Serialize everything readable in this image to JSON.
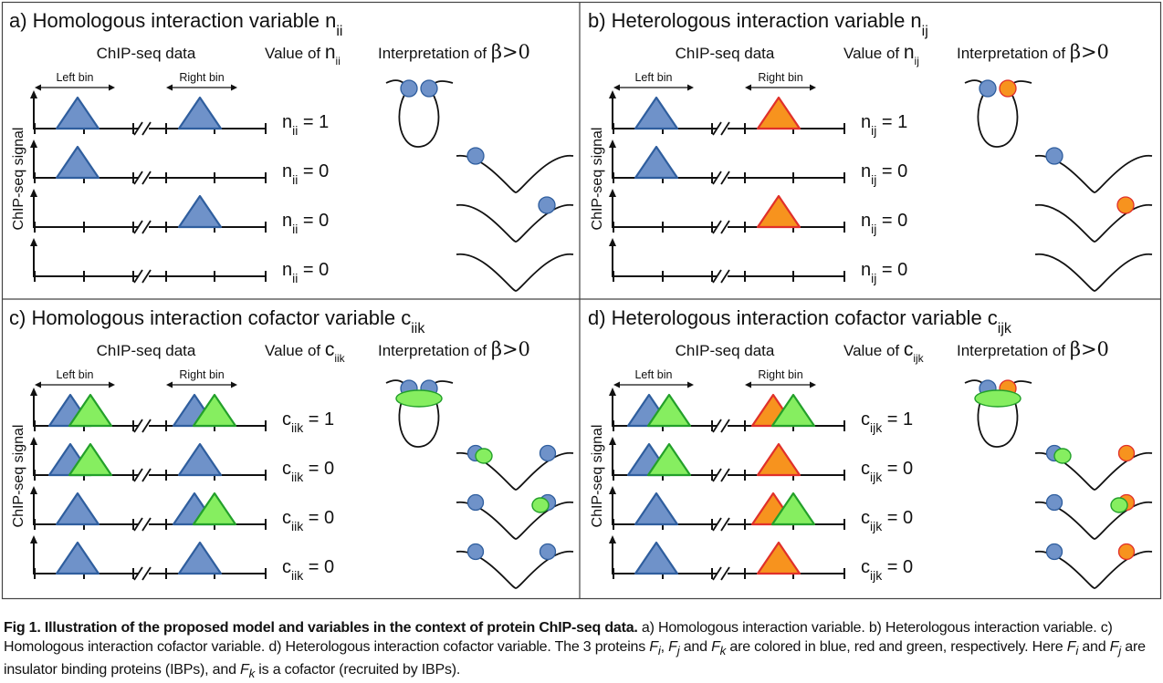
{
  "figure": {
    "ylabel": "ChIP-seq signal",
    "left_bin": "Left bin",
    "right_bin": "Right bin",
    "chip_header": "ChIP-seq data",
    "interp_header": "Interpretation of ",
    "beta_expr": "β>0",
    "value_of": "Value of ",
    "panels": [
      {
        "title": "a) Homologous interaction variable ",
        "title_var": "n",
        "title_sub": "ii",
        "value_label": {
          "var": "n",
          "sub": "ii"
        },
        "rows": [
          {
            "value": "1",
            "left": [
              "blue"
            ],
            "right": [
              "blue"
            ],
            "interp": "loop-pair"
          },
          {
            "value": "0",
            "left": [
              "blue"
            ],
            "right": [],
            "interp": "arc-left"
          },
          {
            "value": "0",
            "left": [],
            "right": [
              "blue"
            ],
            "interp": "arc-right"
          },
          {
            "value": "0",
            "left": [],
            "right": [],
            "interp": "arc-empty"
          }
        ]
      },
      {
        "title": "b) Heterologous interaction variable ",
        "title_var": "n",
        "title_sub": "ij",
        "value_label": {
          "var": "n",
          "sub": "ij"
        },
        "rows": [
          {
            "value": "1",
            "left": [
              "blue"
            ],
            "right": [
              "red"
            ],
            "interp": "loop-pair"
          },
          {
            "value": "0",
            "left": [
              "blue"
            ],
            "right": [],
            "interp": "arc-left"
          },
          {
            "value": "0",
            "left": [],
            "right": [
              "red"
            ],
            "interp": "arc-right"
          },
          {
            "value": "0",
            "left": [],
            "right": [],
            "interp": "arc-empty"
          }
        ]
      },
      {
        "title": "c) Homologous interaction cofactor variable ",
        "title_var": "c",
        "title_sub": "iik",
        "value_label": {
          "var": "c",
          "sub": "iik"
        },
        "rows": [
          {
            "value": "1",
            "left": [
              "blue",
              "green"
            ],
            "right": [
              "blue",
              "green"
            ],
            "interp": "loop-cofactor"
          },
          {
            "value": "0",
            "left": [
              "blue",
              "green"
            ],
            "right": [
              "blue"
            ],
            "interp": "arc-green-left"
          },
          {
            "value": "0",
            "left": [
              "blue"
            ],
            "right": [
              "blue",
              "green"
            ],
            "interp": "arc-green-right"
          },
          {
            "value": "0",
            "left": [
              "blue"
            ],
            "right": [
              "blue"
            ],
            "interp": "arc-two"
          }
        ]
      },
      {
        "title": "d) Heterologous interaction cofactor variable ",
        "title_var": "c",
        "title_sub": "ijk",
        "value_label": {
          "var": "c",
          "sub": "ijk"
        },
        "rows": [
          {
            "value": "1",
            "left": [
              "blue",
              "green"
            ],
            "right": [
              "red",
              "green"
            ],
            "interp": "loop-cofactor"
          },
          {
            "value": "0",
            "left": [
              "blue",
              "green"
            ],
            "right": [
              "red"
            ],
            "interp": "arc-green-left"
          },
          {
            "value": "0",
            "left": [
              "blue"
            ],
            "right": [
              "red",
              "green"
            ],
            "interp": "arc-green-right"
          },
          {
            "value": "0",
            "left": [
              "blue"
            ],
            "right": [
              "red"
            ],
            "interp": "arc-two"
          }
        ]
      }
    ],
    "colors": {
      "blue_fill": "#6f92c9",
      "blue_stroke": "#2f5e9e",
      "red_fill": "#f7931e",
      "red_stroke": "#e0302a",
      "green_fill": "#86ee60",
      "green_stroke": "#23a02a",
      "line": "#111111",
      "border": "#444444"
    }
  },
  "caption": {
    "label": "Fig 1. Illustration of the proposed model and variables in the context of protein ChIP-seq data.",
    "t1": " a) Homologous interaction variable. b) Heterologous interaction variable. c) Homologous interaction cofactor variable. d) Heterologous interaction cofactor variable. The 3 proteins ",
    "fi": "F",
    "fi_sub": "i",
    "sep1": ", ",
    "fj": "F",
    "fj_sub": "j",
    "t2": " and ",
    "fk": "F",
    "fk_sub": "k",
    "t3": " are colored in blue, red and green, respectively. Here ",
    "fi2": "F",
    "fi2_sub": "i",
    "t4": " and ",
    "fj2": "F",
    "fj2_sub": "j",
    "t5": " are insulator binding proteins (IBPs), and ",
    "fk2": "F",
    "fk2_sub": "k",
    "t6": " is a cofactor (recruited by IBPs)."
  }
}
